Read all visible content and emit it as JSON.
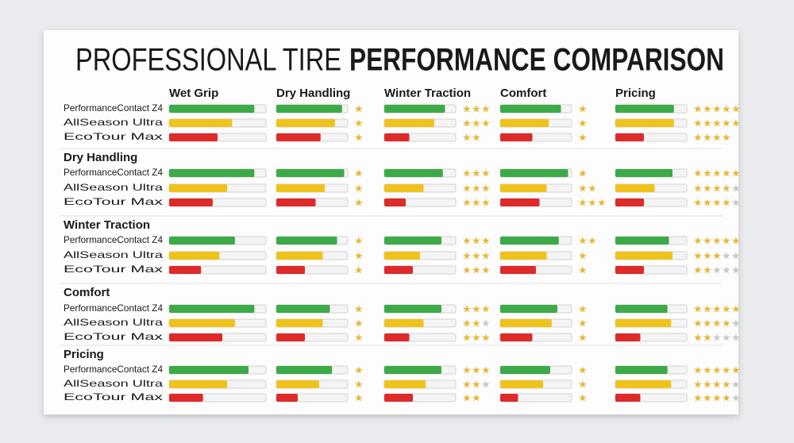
{
  "title_light": "PROFESSIONAL TIRE",
  "title_bold": "PERFORMANCE COMPARISON",
  "columns": [
    "Wet Grip",
    "Dry Handling",
    "Winter Traction",
    "Comfort",
    "Pricing"
  ],
  "products": [
    "PerformanceContact Z4",
    "AllSeason Ultra",
    "EcoTour Max"
  ],
  "colors": [
    "#3cab47",
    "#efc31c",
    "#df2a2a"
  ],
  "star_color": "#e7b83a",
  "groups": [
    {
      "rows": [
        {
          "bars": [
            88,
            92,
            85,
            85,
            82
          ],
          "stars": [
            1,
            3,
            1,
            5
          ],
          "slots": [
            1,
            3,
            1,
            5
          ]
        },
        {
          "bars": [
            65,
            82,
            70,
            68,
            82
          ],
          "stars": [
            1,
            3,
            1,
            5
          ],
          "slots": [
            1,
            3,
            1,
            5
          ]
        },
        {
          "bars": [
            50,
            62,
            35,
            45,
            40
          ],
          "stars": [
            1,
            2,
            1,
            4
          ],
          "slots": [
            1,
            2,
            1,
            4
          ]
        }
      ]
    },
    {
      "title": "Dry Handling",
      "rows": [
        {
          "bars": [
            88,
            95,
            82,
            95,
            80
          ],
          "stars": [
            1,
            3,
            1,
            5
          ],
          "slots": [
            1,
            3,
            1,
            5
          ]
        },
        {
          "bars": [
            60,
            68,
            55,
            65,
            55
          ],
          "stars": [
            1,
            3,
            2,
            4
          ],
          "slots": [
            1,
            3,
            2,
            5
          ]
        },
        {
          "bars": [
            45,
            55,
            30,
            55,
            40
          ],
          "stars": [
            1,
            3,
            3,
            4
          ],
          "slots": [
            1,
            3,
            3,
            5
          ]
        }
      ]
    },
    {
      "title": "Winter Traction",
      "rows": [
        {
          "bars": [
            68,
            85,
            80,
            82,
            75
          ],
          "stars": [
            1,
            3,
            2,
            5
          ],
          "slots": [
            1,
            3,
            2,
            5
          ]
        },
        {
          "bars": [
            52,
            65,
            50,
            65,
            80
          ],
          "stars": [
            1,
            3,
            1,
            3
          ],
          "slots": [
            1,
            3,
            1,
            5
          ]
        },
        {
          "bars": [
            33,
            40,
            40,
            50,
            40
          ],
          "stars": [
            1,
            3,
            1,
            2
          ],
          "slots": [
            1,
            3,
            1,
            5
          ]
        }
      ]
    },
    {
      "title": "Comfort",
      "rows": [
        {
          "bars": [
            88,
            75,
            80,
            80,
            73
          ],
          "stars": [
            1,
            3,
            1,
            5
          ],
          "slots": [
            1,
            3,
            1,
            5
          ]
        },
        {
          "bars": [
            68,
            65,
            55,
            72,
            78
          ],
          "stars": [
            1,
            2,
            1,
            4
          ],
          "slots": [
            1,
            3,
            1,
            5
          ]
        },
        {
          "bars": [
            55,
            40,
            35,
            45,
            35
          ],
          "stars": [
            1,
            3,
            1,
            2
          ],
          "slots": [
            1,
            3,
            1,
            5
          ]
        }
      ]
    },
    {
      "title": "Pricing",
      "rows": [
        {
          "bars": [
            82,
            78,
            80,
            70,
            73
          ],
          "stars": [
            1,
            3,
            1,
            5
          ],
          "slots": [
            1,
            3,
            1,
            5
          ]
        },
        {
          "bars": [
            60,
            60,
            58,
            60,
            78
          ],
          "stars": [
            1,
            2,
            1,
            4
          ],
          "slots": [
            1,
            3,
            1,
            5
          ]
        },
        {
          "bars": [
            35,
            30,
            40,
            25,
            35
          ],
          "stars": [
            1,
            2,
            1,
            4
          ],
          "slots": [
            1,
            2,
            1,
            5
          ]
        }
      ]
    }
  ]
}
